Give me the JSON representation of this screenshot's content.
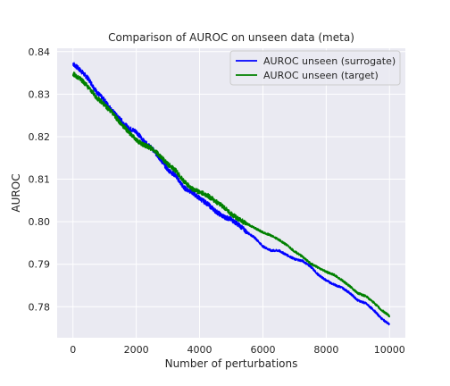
{
  "chart_data": {
    "type": "line",
    "title": "Comparison of AUROC on unseen data (meta)",
    "xlabel": "Number of perturbations",
    "ylabel": "AUROC",
    "xlim": [
      -500,
      10500
    ],
    "ylim": [
      0.7727,
      0.8408
    ],
    "xticks": [
      0,
      2000,
      4000,
      6000,
      8000,
      10000
    ],
    "xtick_labels": [
      "0",
      "2000",
      "4000",
      "6000",
      "8000",
      "10000"
    ],
    "yticks": [
      0.78,
      0.79,
      0.8,
      0.81,
      0.82,
      0.83,
      0.84
    ],
    "ytick_labels": [
      "0.78",
      "0.79",
      "0.80",
      "0.81",
      "0.82",
      "0.83",
      "0.84"
    ],
    "grid": true,
    "legend_position": "upper-right",
    "series": [
      {
        "name": "AUROC unseen (surrogate)",
        "color": "#0000ff",
        "x": [
          0,
          250,
          500,
          750,
          1000,
          1250,
          1500,
          1750,
          2000,
          2250,
          2500,
          2750,
          3000,
          3250,
          3500,
          3750,
          4000,
          4250,
          4500,
          4750,
          5000,
          5250,
          5500,
          5750,
          6000,
          6250,
          6500,
          6750,
          7000,
          7250,
          7500,
          7750,
          8000,
          8250,
          8500,
          8750,
          9000,
          9250,
          9500,
          9750,
          10000
        ],
        "y": [
          0.8372,
          0.8355,
          0.8335,
          0.8305,
          0.8285,
          0.826,
          0.824,
          0.822,
          0.8212,
          0.8188,
          0.8172,
          0.8148,
          0.8122,
          0.8108,
          0.808,
          0.807,
          0.8055,
          0.8042,
          0.8025,
          0.8012,
          0.8005,
          0.7992,
          0.7975,
          0.7962,
          0.7942,
          0.7932,
          0.7932,
          0.7922,
          0.7912,
          0.7908,
          0.7895,
          0.7875,
          0.7862,
          0.7852,
          0.7845,
          0.7832,
          0.7815,
          0.7808,
          0.7792,
          0.7772,
          0.7758
        ]
      },
      {
        "name": "AUROC unseen (target)",
        "color": "#008000",
        "x": [
          0,
          250,
          500,
          750,
          1000,
          1250,
          1500,
          1750,
          2000,
          2250,
          2500,
          2750,
          3000,
          3250,
          3500,
          3750,
          4000,
          4250,
          4500,
          4750,
          5000,
          5250,
          5500,
          5750,
          6000,
          6250,
          6500,
          6750,
          7000,
          7250,
          7500,
          7750,
          8000,
          8250,
          8500,
          8750,
          9000,
          9250,
          9500,
          9750,
          10000
        ],
        "y": [
          0.8348,
          0.8335,
          0.8315,
          0.8292,
          0.8275,
          0.8255,
          0.8232,
          0.8212,
          0.8192,
          0.818,
          0.8172,
          0.8155,
          0.8135,
          0.812,
          0.8095,
          0.8078,
          0.807,
          0.8062,
          0.8048,
          0.8035,
          0.8018,
          0.8005,
          0.7995,
          0.7985,
          0.7975,
          0.7968,
          0.7958,
          0.7945,
          0.793,
          0.7918,
          0.7902,
          0.7892,
          0.7882,
          0.7875,
          0.7862,
          0.7848,
          0.7832,
          0.7825,
          0.781,
          0.7792,
          0.7778
        ]
      }
    ]
  }
}
